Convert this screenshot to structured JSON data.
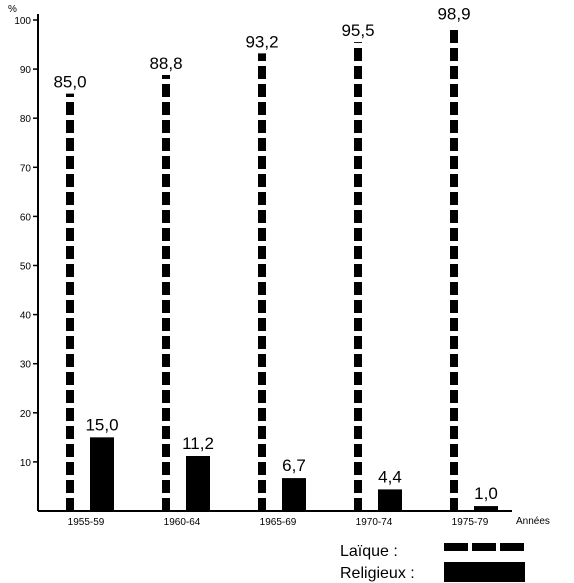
{
  "chart_data": {
    "type": "bar",
    "ylabel": "%",
    "xlabel": "Années",
    "ylim": [
      0,
      100
    ],
    "yticks": [
      10,
      20,
      30,
      40,
      50,
      60,
      70,
      80,
      90,
      100
    ],
    "grid": false,
    "legend_position": "bottom-right",
    "categories": [
      "1955-59",
      "1960-64",
      "1965-69",
      "1970-74",
      "1975-79"
    ],
    "series": [
      {
        "name": "Laïque :",
        "style": "dashed",
        "values_label": [
          "85,0",
          "88,8",
          "93,2",
          "95,5",
          "98,9"
        ],
        "values": [
          85.0,
          88.8,
          93.2,
          95.5,
          98.9
        ]
      },
      {
        "name": "Religieux :",
        "style": "solid",
        "values_label": [
          "15,0",
          "11,2",
          "6,7",
          "4,4",
          "1,0"
        ],
        "values": [
          15.0,
          11.2,
          6.7,
          4.4,
          1.0
        ]
      }
    ],
    "colors": {
      "ink": "#000000",
      "background": "#ffffff"
    }
  }
}
